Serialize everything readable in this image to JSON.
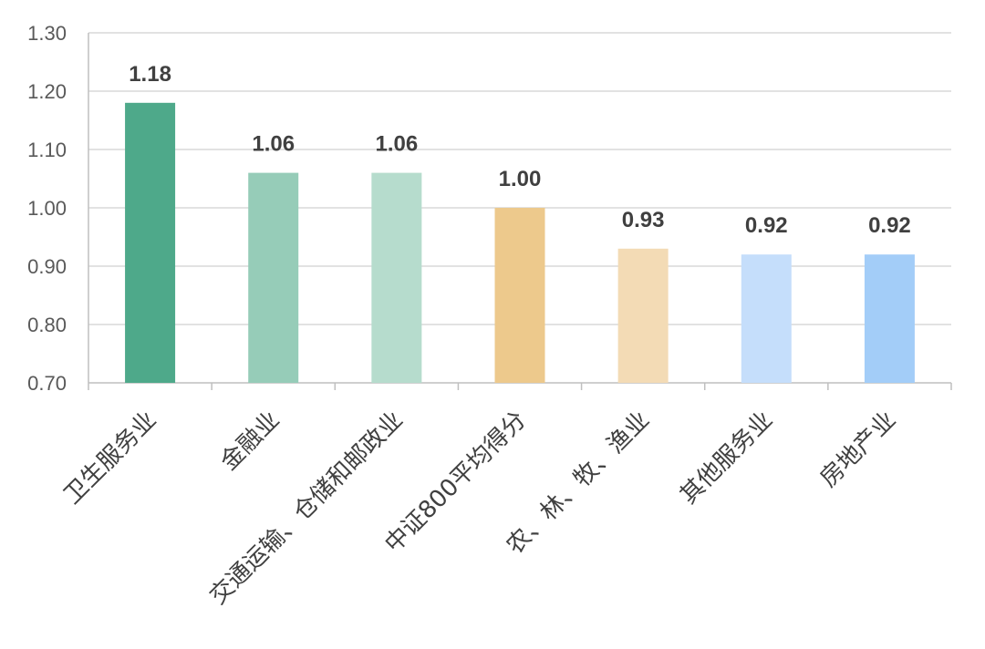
{
  "chart_data": {
    "type": "bar",
    "title": "",
    "xlabel": "",
    "ylabel": "",
    "categories": [
      "卫生服务业",
      "金融业",
      "交通运输、仓储和邮政业",
      "中证800平均得分",
      "农、林、牧、渔业",
      "其他服务业",
      "房地产业"
    ],
    "values": [
      1.18,
      1.06,
      1.06,
      1.0,
      0.93,
      0.92,
      0.92
    ],
    "value_labels": [
      "1.18",
      "1.06",
      "1.06",
      "1.00",
      "0.93",
      "0.92",
      "0.92"
    ],
    "bar_colors": [
      "#4ea98a",
      "#96ccb8",
      "#b6dccd",
      "#edc98c",
      "#f3dbb5",
      "#c5defb",
      "#a3cdf8"
    ],
    "ylim": [
      0.7,
      1.3
    ],
    "yticks": [
      0.7,
      0.8,
      0.9,
      1.0,
      1.1,
      1.2,
      1.3
    ],
    "ytick_labels": [
      "0.70",
      "0.80",
      "0.90",
      "1.00",
      "1.10",
      "1.20",
      "1.30"
    ],
    "grid": true,
    "legend": "none"
  }
}
